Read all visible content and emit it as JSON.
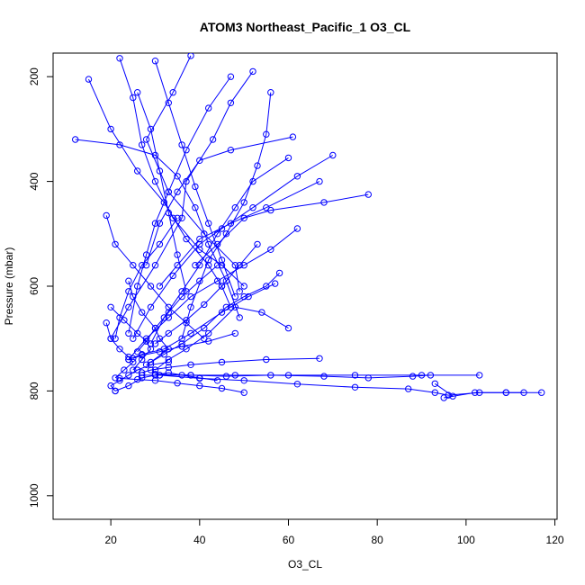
{
  "chart_data": {
    "type": "line",
    "title": "ATOM3 Northeast_Pacific_1 O3_CL",
    "xlabel": "O3_CL",
    "ylabel": "Pressure (mbar)",
    "xlim": [
      7,
      120.5
    ],
    "ylim": [
      1045,
      155
    ],
    "y_reversed": true,
    "xticks": [
      20,
      40,
      60,
      80,
      100,
      120
    ],
    "yticks": [
      200,
      400,
      600,
      800,
      1000
    ],
    "grid": false,
    "legend": "none",
    "colors": {
      "series": "#0000ff",
      "foreground": "#000000",
      "background": "#ffffff"
    },
    "marker": "open-circle",
    "series": [
      {
        "x": [
          52,
          47,
          43,
          37,
          36,
          30,
          24,
          20
        ],
        "y": [
          190,
          250,
          320,
          400,
          470,
          560,
          640,
          700
        ]
      },
      {
        "x": [
          38,
          34,
          28,
          33,
          41,
          48,
          49
        ],
        "y": [
          160,
          230,
          320,
          420,
          500,
          560,
          610
        ]
      },
      {
        "x": [
          22,
          25,
          27,
          30,
          34,
          40,
          45,
          50
        ],
        "y": [
          165,
          240,
          330,
          400,
          470,
          530,
          560,
          600
        ]
      },
      {
        "x": [
          47,
          42,
          37,
          33,
          30,
          28,
          26,
          24
        ],
        "y": [
          200,
          260,
          340,
          420,
          480,
          540,
          600,
          690
        ]
      },
      {
        "x": [
          56,
          55,
          53,
          50,
          46,
          42,
          38,
          36
        ],
        "y": [
          230,
          310,
          370,
          440,
          500,
          550,
          640,
          700
        ]
      },
      {
        "x": [
          12,
          22,
          30,
          35,
          39,
          42,
          46,
          49
        ],
        "y": [
          320,
          330,
          350,
          390,
          450,
          520,
          590,
          660
        ]
      },
      {
        "x": [
          61,
          47,
          40,
          35,
          31,
          28
        ],
        "y": [
          315,
          340,
          360,
          420,
          480,
          560
        ]
      },
      {
        "x": [
          70,
          62,
          52,
          45,
          40,
          34,
          29,
          25
        ],
        "y": [
          350,
          390,
          450,
          490,
          520,
          580,
          640,
          700
        ]
      },
      {
        "x": [
          78,
          68,
          56,
          50,
          44,
          39
        ],
        "y": [
          425,
          440,
          455,
          470,
          520,
          560
        ]
      },
      {
        "x": [
          67,
          55,
          47,
          40,
          35,
          31
        ],
        "y": [
          400,
          450,
          480,
          510,
          560,
          600
        ]
      },
      {
        "x": [
          60,
          52,
          48,
          44,
          40,
          36,
          32,
          29
        ],
        "y": [
          355,
          400,
          450,
          500,
          560,
          610,
          660,
          710
        ]
      },
      {
        "x": [
          15,
          20,
          26,
          32,
          37,
          42,
          45,
          47
        ],
        "y": [
          205,
          300,
          380,
          440,
          510,
          560,
          600,
          640
        ]
      },
      {
        "x": [
          62,
          56,
          50,
          44,
          38,
          33,
          28,
          24
        ],
        "y": [
          490,
          530,
          560,
          590,
          620,
          660,
          700,
          740
        ]
      },
      {
        "x": [
          19,
          21,
          25,
          29,
          33,
          37,
          41
        ],
        "y": [
          465,
          520,
          560,
          600,
          640,
          670,
          700
        ]
      },
      {
        "x": [
          58,
          55,
          50,
          46,
          41,
          36,
          32,
          28
        ],
        "y": [
          575,
          600,
          620,
          640,
          680,
          710,
          730,
          750
        ]
      },
      {
        "x": [
          60,
          54,
          48,
          42,
          37,
          33,
          30
        ],
        "y": [
          680,
          650,
          640,
          690,
          720,
          740,
          760
        ]
      },
      {
        "x": [
          57,
          51,
          45,
          38,
          32,
          27,
          24
        ],
        "y": [
          595,
          620,
          650,
          690,
          720,
          730,
          740
        ]
      },
      {
        "x": [
          24,
          25,
          27,
          30,
          31,
          33,
          29
        ],
        "y": [
          590,
          620,
          650,
          680,
          700,
          720,
          745
        ]
      },
      {
        "x": [
          20,
          23,
          26,
          28,
          29,
          27,
          25
        ],
        "y": [
          640,
          665,
          690,
          705,
          720,
          740,
          760
        ]
      },
      {
        "x": [
          19,
          20,
          22,
          24,
          25,
          23,
          21
        ],
        "y": [
          670,
          700,
          720,
          735,
          745,
          760,
          775
        ]
      },
      {
        "x": [
          21,
          24,
          27,
          30,
          33,
          36,
          40,
          44
        ],
        "y": [
          800,
          790,
          775,
          770,
          765,
          770,
          775,
          780
        ]
      },
      {
        "x": [
          67,
          55,
          45,
          38,
          33,
          29,
          27
        ],
        "y": [
          738,
          740,
          745,
          750,
          755,
          760,
          765
        ]
      },
      {
        "x": [
          103,
          90,
          75,
          60,
          48,
          38,
          31,
          27
        ],
        "y": [
          770,
          770,
          770,
          770,
          770,
          770,
          770,
          770
        ]
      },
      {
        "x": [
          117,
          109,
          103,
          96,
          93,
          87,
          75,
          62,
          50,
          40,
          31
        ],
        "y": [
          803,
          803,
          803,
          808,
          803,
          796,
          793,
          787,
          780,
          776,
          770
        ]
      },
      {
        "x": [
          113,
          109,
          102,
          95,
          97,
          93
        ],
        "y": [
          803,
          803,
          803,
          813,
          810,
          786
        ]
      },
      {
        "x": [
          92,
          88,
          78,
          68,
          56,
          46,
          38,
          30
        ],
        "y": [
          770,
          772,
          775,
          772,
          770,
          772,
          770,
          768
        ]
      },
      {
        "x": [
          50,
          45,
          40,
          35,
          30,
          26,
          22
        ],
        "y": [
          803,
          795,
          790,
          785,
          780,
          778,
          776
        ]
      },
      {
        "x": [
          21,
          20,
          22,
          24,
          26,
          29,
          33
        ],
        "y": [
          800,
          790,
          780,
          770,
          760,
          750,
          745
        ]
      },
      {
        "x": [
          48,
          42,
          36,
          31,
          27,
          25
        ],
        "y": [
          690,
          705,
          715,
          725,
          732,
          738
        ]
      },
      {
        "x": [
          44,
          40,
          36,
          33,
          30,
          28,
          26
        ],
        "y": [
          560,
          590,
          620,
          650,
          680,
          705,
          725
        ]
      },
      {
        "x": [
          53,
          49,
          45,
          41,
          37,
          33,
          30
        ],
        "y": [
          520,
          560,
          600,
          635,
          665,
          690,
          710
        ]
      },
      {
        "x": [
          30,
          33,
          36,
          39,
          42,
          45,
          48
        ],
        "y": [
          170,
          250,
          330,
          410,
          480,
          550,
          620
        ]
      },
      {
        "x": [
          26,
          29,
          31,
          33,
          35,
          37
        ],
        "y": [
          230,
          300,
          380,
          460,
          540,
          610
        ]
      },
      {
        "x": [
          35,
          31,
          27,
          24,
          22,
          21
        ],
        "y": [
          470,
          520,
          560,
          610,
          660,
          700
        ]
      }
    ]
  }
}
